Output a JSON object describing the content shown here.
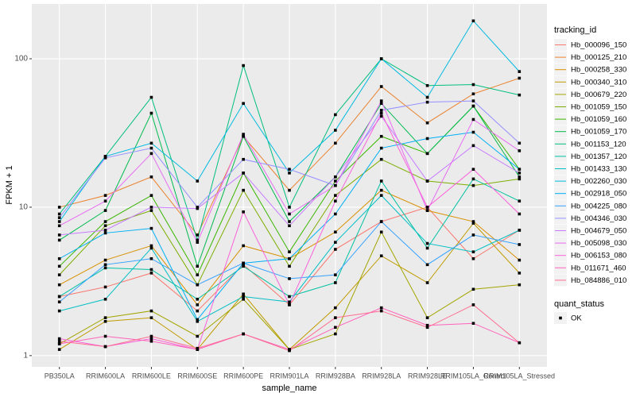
{
  "chart_data": {
    "type": "line",
    "x_label": "sample_name",
    "y_label": "FPKM + 1",
    "log_y": true,
    "grid": true,
    "legend_title": "tracking_id",
    "legend_position": "right",
    "shape_legend": {
      "title": "quant_status",
      "entries": [
        "OK"
      ]
    },
    "point_color": "#000000",
    "categories": [
      "PB350LA",
      "RRIM600LA",
      "RRIM600LE",
      "RRIM600SE",
      "RRIM600PE",
      "RRIM901LA",
      "RRIM928BA",
      "RRIM928LA",
      "RRIM928LE",
      "RRIM105LA_Control",
      "RRIM105LA_Stressed"
    ],
    "ylim": [
      0.84,
      234
    ],
    "yticks": [
      1,
      10,
      100
    ],
    "series": [
      {
        "name": "Hb_000096_150",
        "color": "#F8766D",
        "values": [
          2.5,
          2.9,
          3.6,
          2.0,
          4.1,
          2.2,
          5.2,
          8,
          10,
          4.5,
          7
        ]
      },
      {
        "name": "Hb_000125_210",
        "color": "#EA8331",
        "values": [
          10,
          12,
          16,
          6.5,
          30,
          13,
          27,
          65,
          37,
          58,
          74
        ]
      },
      {
        "name": "Hb_000258_330",
        "color": "#D89000",
        "values": [
          3,
          4.4,
          5.5,
          2.2,
          5.5,
          4.5,
          6.8,
          13,
          9.5,
          8,
          4.4
        ]
      },
      {
        "name": "Hb_000340_310",
        "color": "#C09B00",
        "values": [
          1.1,
          1.7,
          1.8,
          1.1,
          2.6,
          1.1,
          2.1,
          4.7,
          3.1,
          7.8,
          3.6
        ]
      },
      {
        "name": "Hb_000679_220",
        "color": "#A3A500",
        "values": [
          1.2,
          1.8,
          2.0,
          1.35,
          2.4,
          1.1,
          1.4,
          6.8,
          1.8,
          2.8,
          3.0
        ]
      },
      {
        "name": "Hb_001059_150",
        "color": "#7CAE00",
        "values": [
          3.5,
          7.5,
          9.5,
          3,
          13,
          4,
          12,
          21,
          15,
          14,
          15.5
        ]
      },
      {
        "name": "Hb_001059_160",
        "color": "#39B600",
        "values": [
          4,
          8,
          12,
          3.5,
          17,
          5,
          15,
          30,
          23,
          48,
          18
        ]
      },
      {
        "name": "Hb_001059_170",
        "color": "#00BB4E",
        "values": [
          6,
          9.5,
          43,
          4,
          30,
          8,
          16,
          50,
          23,
          48,
          16
        ]
      },
      {
        "name": "Hb_001153_120",
        "color": "#00BF7D",
        "values": [
          9,
          22,
          55,
          6,
          90,
          10,
          42,
          100,
          66,
          67,
          57
        ]
      },
      {
        "name": "Hb_001357_120",
        "color": "#00C1A3",
        "values": [
          2.5,
          3.9,
          3.8,
          2.4,
          4,
          2.5,
          3.1,
          15,
          5.3,
          15.5,
          11
        ]
      },
      {
        "name": "Hb_001433_130",
        "color": "#00BFC4",
        "values": [
          2,
          2.4,
          5.3,
          1.7,
          2.5,
          2.3,
          5.8,
          12,
          5.7,
          5,
          7
        ]
      },
      {
        "name": "Hb_002260_030",
        "color": "#00BAE0",
        "values": [
          8,
          22,
          27,
          15,
          50,
          17,
          33,
          100,
          55,
          180,
          82
        ]
      },
      {
        "name": "Hb_002918_050",
        "color": "#00B0F6",
        "values": [
          4.5,
          6.7,
          7.2,
          1.75,
          4.2,
          4.5,
          9,
          25,
          29,
          32,
          18
        ]
      },
      {
        "name": "Hb_004225_080",
        "color": "#35A2FF",
        "values": [
          2.3,
          4.1,
          4.5,
          3,
          4.2,
          3.3,
          3.5,
          8,
          4.1,
          6.5,
          5.6
        ]
      },
      {
        "name": "Hb_004346_030",
        "color": "#9590FF",
        "values": [
          8.5,
          21.5,
          25,
          10,
          21,
          18,
          14,
          45,
          51,
          52,
          27
        ]
      },
      {
        "name": "Hb_004679_050",
        "color": "#C77CFF",
        "values": [
          6.5,
          7,
          10,
          9.8,
          17,
          7.5,
          16,
          41,
          15,
          26,
          17
        ]
      },
      {
        "name": "Hb_005098_030",
        "color": "#E76BF3",
        "values": [
          7.5,
          11,
          23,
          5.8,
          31,
          9,
          14,
          52,
          9.5,
          39,
          24
        ]
      },
      {
        "name": "Hb_006153_080",
        "color": "#FA62DB",
        "values": [
          1.3,
          1.15,
          1.3,
          1.1,
          9.3,
          2.2,
          11,
          43,
          10,
          18,
          9
        ]
      },
      {
        "name": "Hb_011671_460",
        "color": "#FF62BC",
        "values": [
          1.2,
          1.35,
          1.25,
          1.1,
          1.4,
          1.1,
          1.55,
          2.1,
          1.6,
          1.65,
          1.22
        ]
      },
      {
        "name": "Hb_084886_010",
        "color": "#FF6C91",
        "values": [
          1.25,
          1.15,
          1.35,
          1.12,
          1.4,
          1.08,
          1.8,
          2.0,
          1.55,
          2.2,
          1.22
        ]
      }
    ]
  }
}
